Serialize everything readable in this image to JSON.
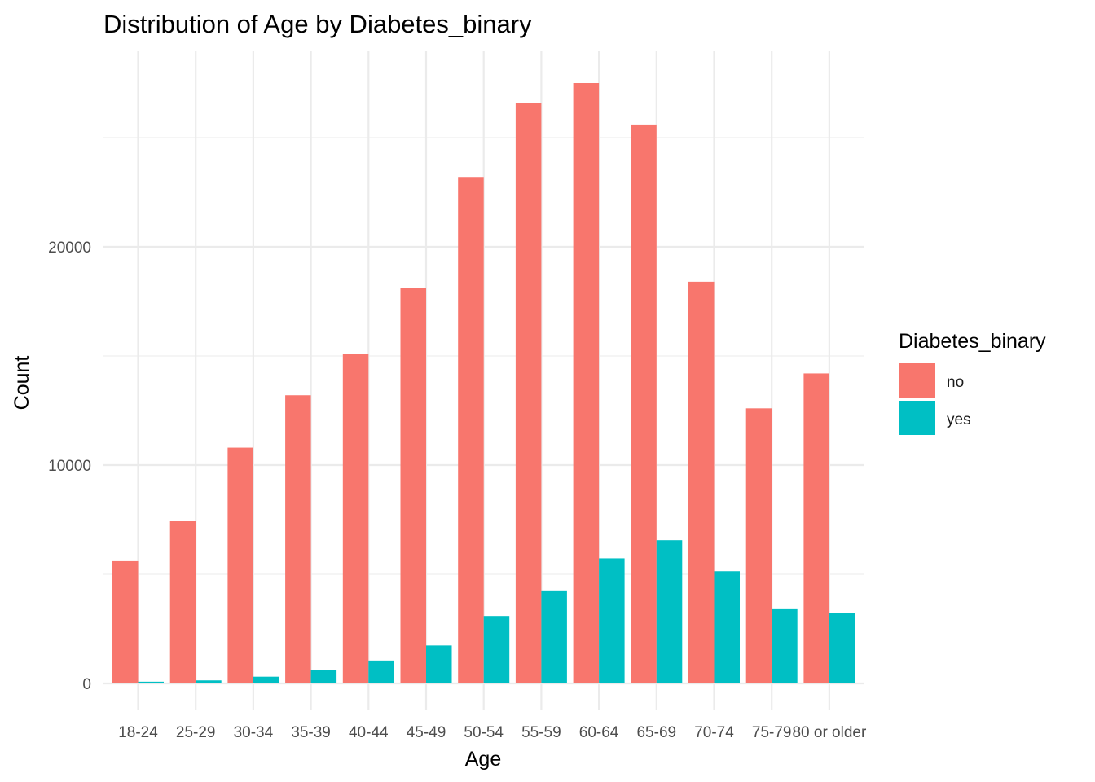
{
  "chart_data": {
    "type": "bar",
    "title": "Distribution of Age by Diabetes_binary",
    "xlabel": "Age",
    "ylabel": "Count",
    "categories": [
      "18-24",
      "25-29",
      "30-34",
      "35-39",
      "40-44",
      "45-49",
      "50-54",
      "55-59",
      "60-64",
      "65-69",
      "70-74",
      "75-79",
      "80 or older"
    ],
    "series": [
      {
        "name": "no",
        "color": "#F8766D",
        "values": [
          5600,
          7450,
          10800,
          13200,
          15100,
          18100,
          23200,
          26600,
          27500,
          25600,
          18400,
          12600,
          14200
        ]
      },
      {
        "name": "yes",
        "color": "#00BFC4",
        "values": [
          80,
          140,
          310,
          630,
          1050,
          1740,
          3090,
          4260,
          5730,
          6560,
          5140,
          3400,
          3210
        ]
      }
    ],
    "ylim": [
      -1250,
      29000
    ],
    "yticks": [
      0,
      10000,
      20000
    ],
    "ytick_labels": [
      "0",
      "10000",
      "20000"
    ],
    "grid": true,
    "legend": {
      "title": "Diabetes_binary",
      "position": "right",
      "items": [
        "no",
        "yes"
      ]
    }
  }
}
